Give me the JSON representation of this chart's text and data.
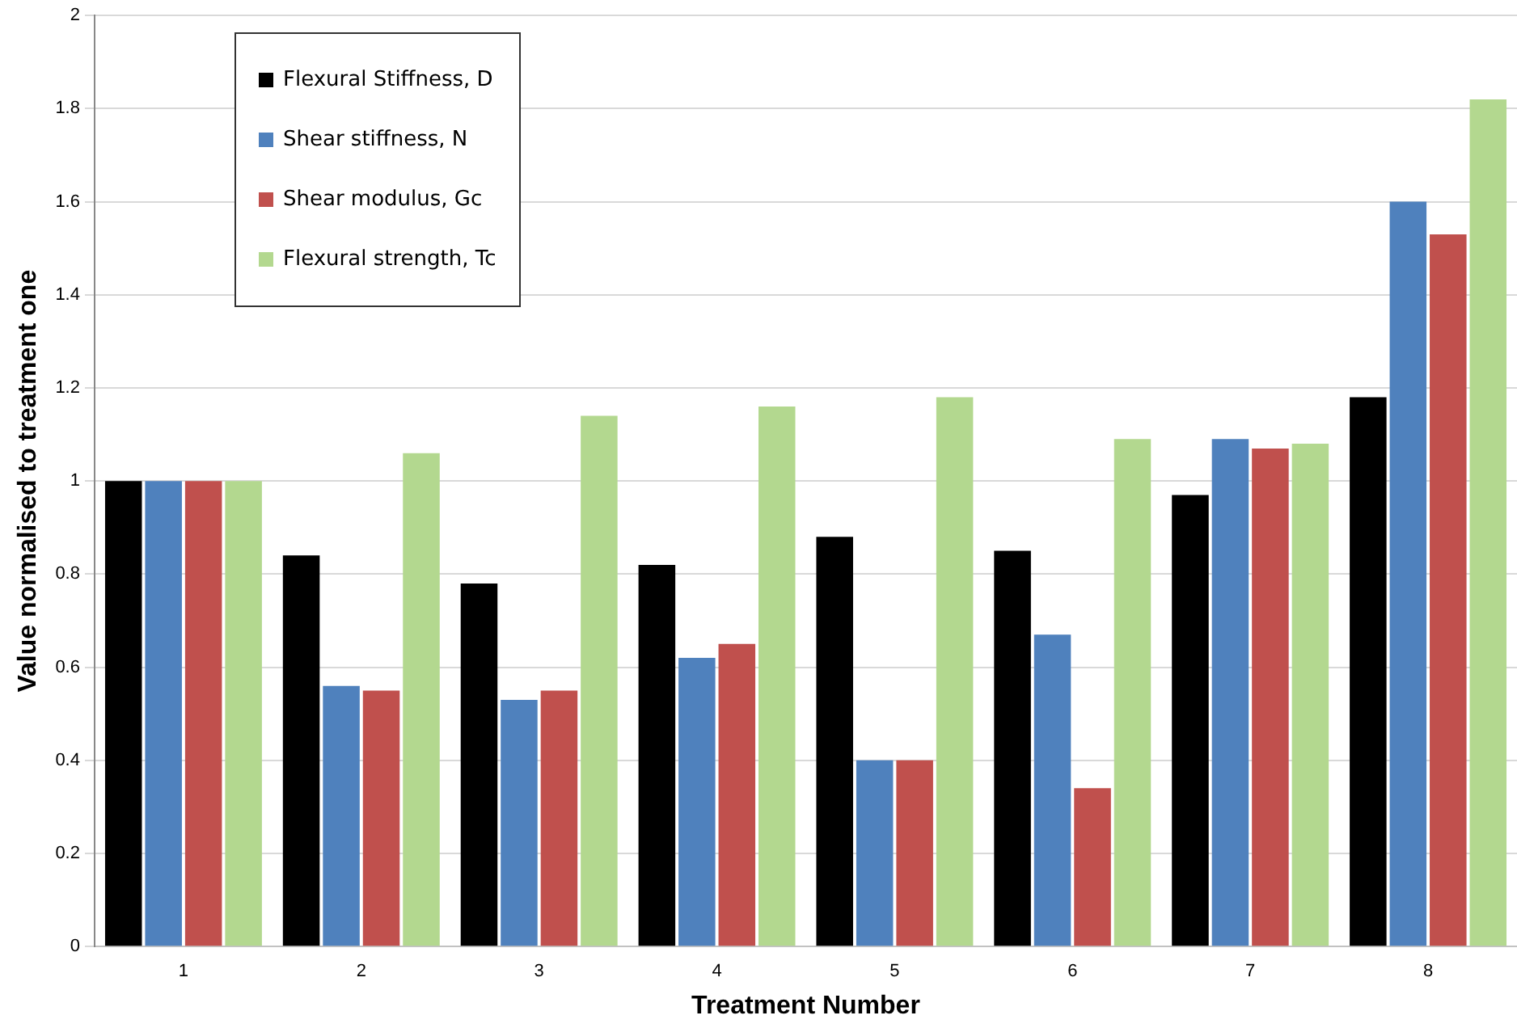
{
  "chart_data": {
    "type": "bar",
    "xlabel": "Treatment Number",
    "ylabel": "Value normalised to treatment one",
    "categories": [
      "1",
      "2",
      "3",
      "4",
      "5",
      "6",
      "7",
      "8"
    ],
    "series": [
      {
        "name": "Flexural Stiffness, D",
        "color": "#000000",
        "values": [
          1.0,
          0.84,
          0.78,
          0.82,
          0.88,
          0.85,
          0.97,
          1.18
        ]
      },
      {
        "name": "Shear stiffness, N",
        "color": "#4f81bd",
        "values": [
          1.0,
          0.56,
          0.53,
          0.62,
          0.4,
          0.67,
          1.09,
          1.6
        ]
      },
      {
        "name": "Shear modulus, Gc",
        "color": "#c0504d",
        "values": [
          1.0,
          0.55,
          0.55,
          0.65,
          0.4,
          0.34,
          1.07,
          1.53
        ]
      },
      {
        "name": "Flexural strength, Tc",
        "color": "#b3d88f",
        "values": [
          1.0,
          1.06,
          1.14,
          1.16,
          1.18,
          1.09,
          1.08,
          1.82
        ]
      }
    ],
    "ylim": [
      0,
      2
    ],
    "yticks": [
      0,
      0.2,
      0.4,
      0.6,
      0.8,
      1,
      1.2,
      1.4,
      1.6,
      1.8,
      2
    ],
    "grid": "y",
    "legend": "top left"
  }
}
